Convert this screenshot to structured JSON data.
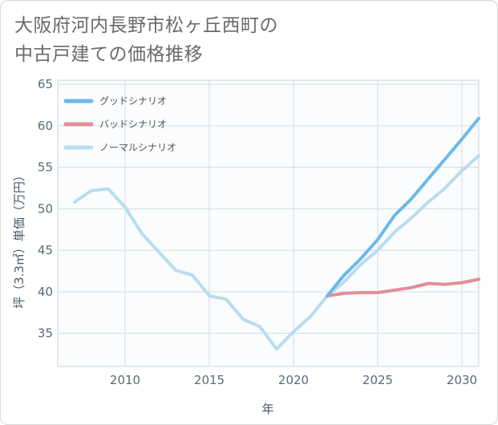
{
  "title_lines": [
    "大阪府河内長野市松ヶ丘西町の",
    "中古戸建ての価格推移"
  ],
  "chart_data": {
    "type": "line",
    "title": "大阪府河内長野市松ヶ丘西町の中古戸建ての価格推移",
    "xlabel": "年",
    "ylabel": "坪（3.3㎡）単価（万円）",
    "xlim": [
      2006,
      2031
    ],
    "ylim": [
      31,
      65.5
    ],
    "xticks": [
      2010,
      2015,
      2020,
      2025,
      2030
    ],
    "yticks": [
      35,
      40,
      45,
      50,
      55,
      60,
      65
    ],
    "grid": true,
    "legend_position": "top-left",
    "series": [
      {
        "name": "グッドシナリオ",
        "color": "#6cb9ea",
        "x": [
          2022,
          2023,
          2024,
          2025,
          2026,
          2027,
          2028,
          2029,
          2030,
          2031
        ],
        "values": [
          39.5,
          42.0,
          44.0,
          46.3,
          49.2,
          51.2,
          53.6,
          56.0,
          58.4,
          60.9
        ]
      },
      {
        "name": "バッドシナリオ",
        "color": "#e08f97",
        "x": [
          2022,
          2023,
          2024,
          2025,
          2026,
          2027,
          2028,
          2029,
          2030,
          2031
        ],
        "values": [
          39.5,
          39.8,
          39.9,
          39.9,
          40.2,
          40.5,
          41.0,
          40.9,
          41.1,
          41.5
        ]
      },
      {
        "name": "ノーマルシナリオ",
        "color": "#b9dcef",
        "x": [
          2007,
          2008,
          2009,
          2010,
          2011,
          2012,
          2013,
          2014,
          2015,
          2016,
          2017,
          2018,
          2019,
          2020,
          2021,
          2022,
          2023,
          2024,
          2025,
          2026,
          2027,
          2028,
          2029,
          2030,
          2031
        ],
        "values": [
          50.8,
          52.2,
          52.4,
          50.2,
          47.0,
          44.8,
          42.6,
          42.0,
          39.5,
          39.1,
          36.7,
          35.8,
          33.1,
          35.2,
          37.0,
          39.5,
          41.2,
          43.3,
          45.0,
          47.2,
          48.9,
          50.8,
          52.5,
          54.6,
          56.4
        ]
      }
    ]
  }
}
